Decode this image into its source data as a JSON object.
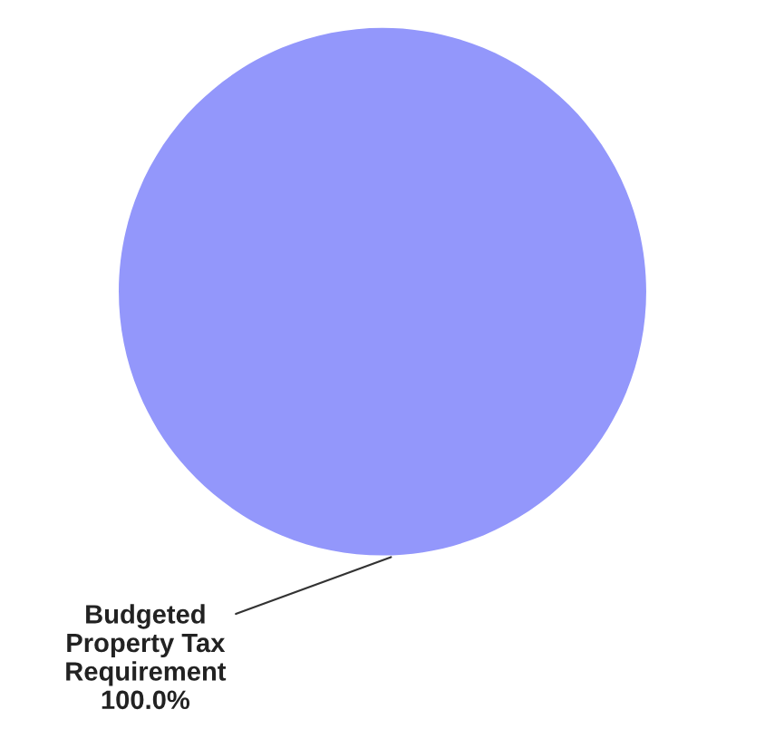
{
  "chart_data": {
    "type": "pie",
    "categories": [
      "Budgeted\nProperty Tax\nRequirement"
    ],
    "values": [
      100
    ],
    "colors": [
      "#9397fb"
    ],
    "value_labels": [
      "100.0%"
    ],
    "legend": false
  }
}
